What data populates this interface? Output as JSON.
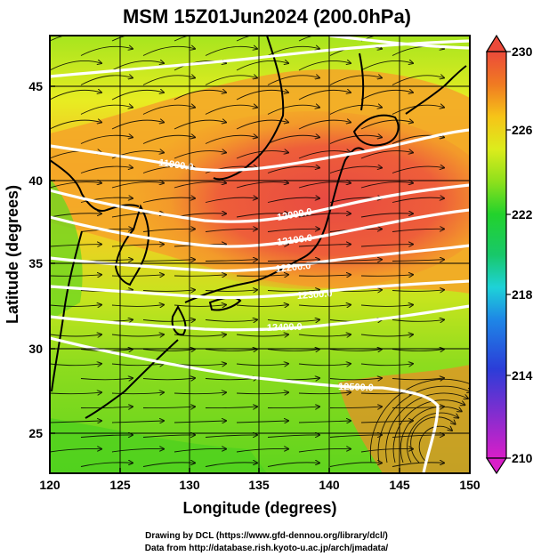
{
  "title": "MSM 15Z01Jun2024 (200.0hPa)",
  "map": {
    "xlabel": "Longitude (degrees)",
    "ylabel": "Latitude  (degrees)",
    "x_ticks": [
      "120",
      "125",
      "130",
      "135",
      "140",
      "145",
      "150"
    ],
    "y_ticks": [
      "45",
      "40",
      "35",
      "30",
      "25"
    ],
    "xlim": [
      120,
      150
    ],
    "ylim": [
      22.4,
      47.6
    ]
  },
  "colorbar": {
    "ticks": [
      "230",
      "226",
      "222",
      "218",
      "214",
      "210"
    ],
    "range": [
      210,
      230
    ],
    "colors": [
      "#d81ec8",
      "#7a2fd0",
      "#2b3dd8",
      "#1e86e6",
      "#1ed2d8",
      "#18c86a",
      "#22d22c",
      "#8ee01c",
      "#dcec1c",
      "#f6c418",
      "#f07a22",
      "#ec4a3a",
      "#e8463c"
    ]
  },
  "contours": {
    "labels": [
      "11900.0",
      "12000.0",
      "12100.0",
      "12200.0",
      "12300.0",
      "12400.0",
      "12500.0"
    ],
    "color": "#ffffff"
  },
  "credits": {
    "line1": "Drawing by DCL (https://www.gfd-dennou.org/library/dcl/)",
    "line2": "Data from http://database.rish.kyoto-u.ac.jp/arch/jmadata/"
  }
}
